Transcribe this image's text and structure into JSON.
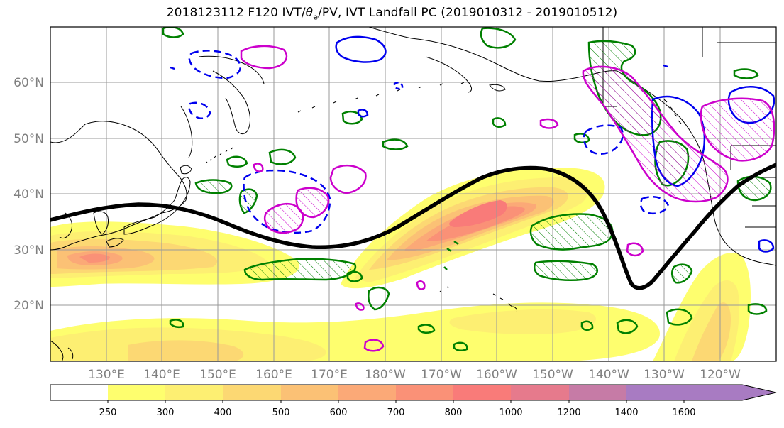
{
  "title": {
    "prefix": "2018123112 F120 IVT/",
    "theta": "θ",
    "theta_sub": "e",
    "suffix": "/PV, IVT Landfall PC (2019010312 - 2019010512)"
  },
  "map": {
    "lat_labels": [
      "60°N",
      "50°N",
      "40°N",
      "30°N",
      "20°N"
    ],
    "lon_labels": [
      "130°E",
      "140°E",
      "150°E",
      "160°E",
      "170°E",
      "180°W",
      "170°W",
      "160°W",
      "150°W",
      "140°W",
      "130°W",
      "120°W"
    ],
    "lat_values": [
      60,
      50,
      40,
      30,
      20
    ],
    "lon_values": [
      130,
      140,
      150,
      160,
      170,
      180,
      -170,
      -160,
      -150,
      -140,
      -130,
      -120
    ],
    "colors": {
      "coast": "#000000",
      "jet_line": "#000000",
      "pv_positive": "#cc00cc",
      "pv_negative": "#0000ee",
      "theta_e_anomaly": "#008000"
    }
  },
  "colorbar": {
    "levels": [
      "250",
      "300",
      "400",
      "500",
      "600",
      "700",
      "800",
      "1000",
      "1200",
      "1400",
      "1600"
    ],
    "colors": [
      "#ffffff",
      "#fefe6e",
      "#fdef72",
      "#fcd873",
      "#fbc175",
      "#fba977",
      "#fa9177",
      "#f97b79",
      "#e67a8c",
      "#c67ba6",
      "#a87bc2"
    ],
    "extend": "max"
  }
}
